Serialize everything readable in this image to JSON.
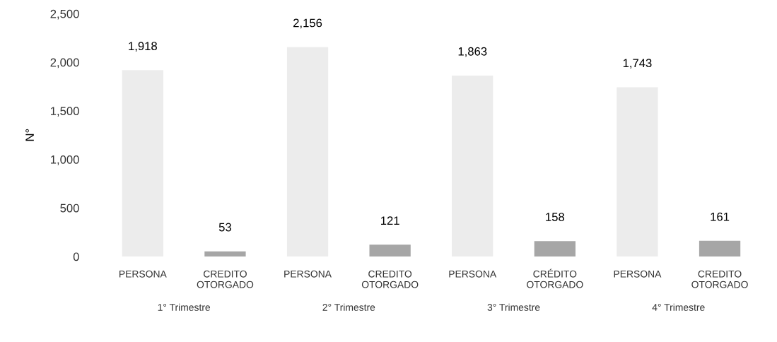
{
  "chart_data": {
    "type": "bar",
    "ylabel": "N°",
    "categories": [
      "PERSONA",
      "CREDITO\nOTORGADO",
      "PERSONA",
      "CREDITO\nOTORGADO",
      "PERSONA",
      "CRÉDITO\nOTORGADO",
      "PERSONA",
      "CREDITO\nOTORGADO"
    ],
    "values": [
      1918,
      53,
      2156,
      121,
      1863,
      158,
      1743,
      161
    ],
    "colors": [
      "#ececec",
      "#a6a6a6",
      "#ececec",
      "#a6a6a6",
      "#ececec",
      "#a6a6a6",
      "#ececec",
      "#a6a6a6"
    ],
    "value_labels": [
      "1,918",
      "53",
      "2,156",
      "121",
      "1,863",
      "158",
      "1,743",
      "161"
    ],
    "ylim": [
      0,
      2500
    ],
    "yticks": [
      {
        "value": 0,
        "label": "0"
      },
      {
        "value": 500,
        "label": "500"
      },
      {
        "value": 1000,
        "label": "1,000"
      },
      {
        "value": 1500,
        "label": "1,500"
      },
      {
        "value": 2000,
        "label": "2,000"
      },
      {
        "value": 2500,
        "label": "2,500"
      }
    ],
    "annotations": [
      "1° Trimestre",
      "2° Trimestre",
      "3° Trimestre",
      "4° Trimestre"
    ],
    "grid": false,
    "legend": false
  }
}
